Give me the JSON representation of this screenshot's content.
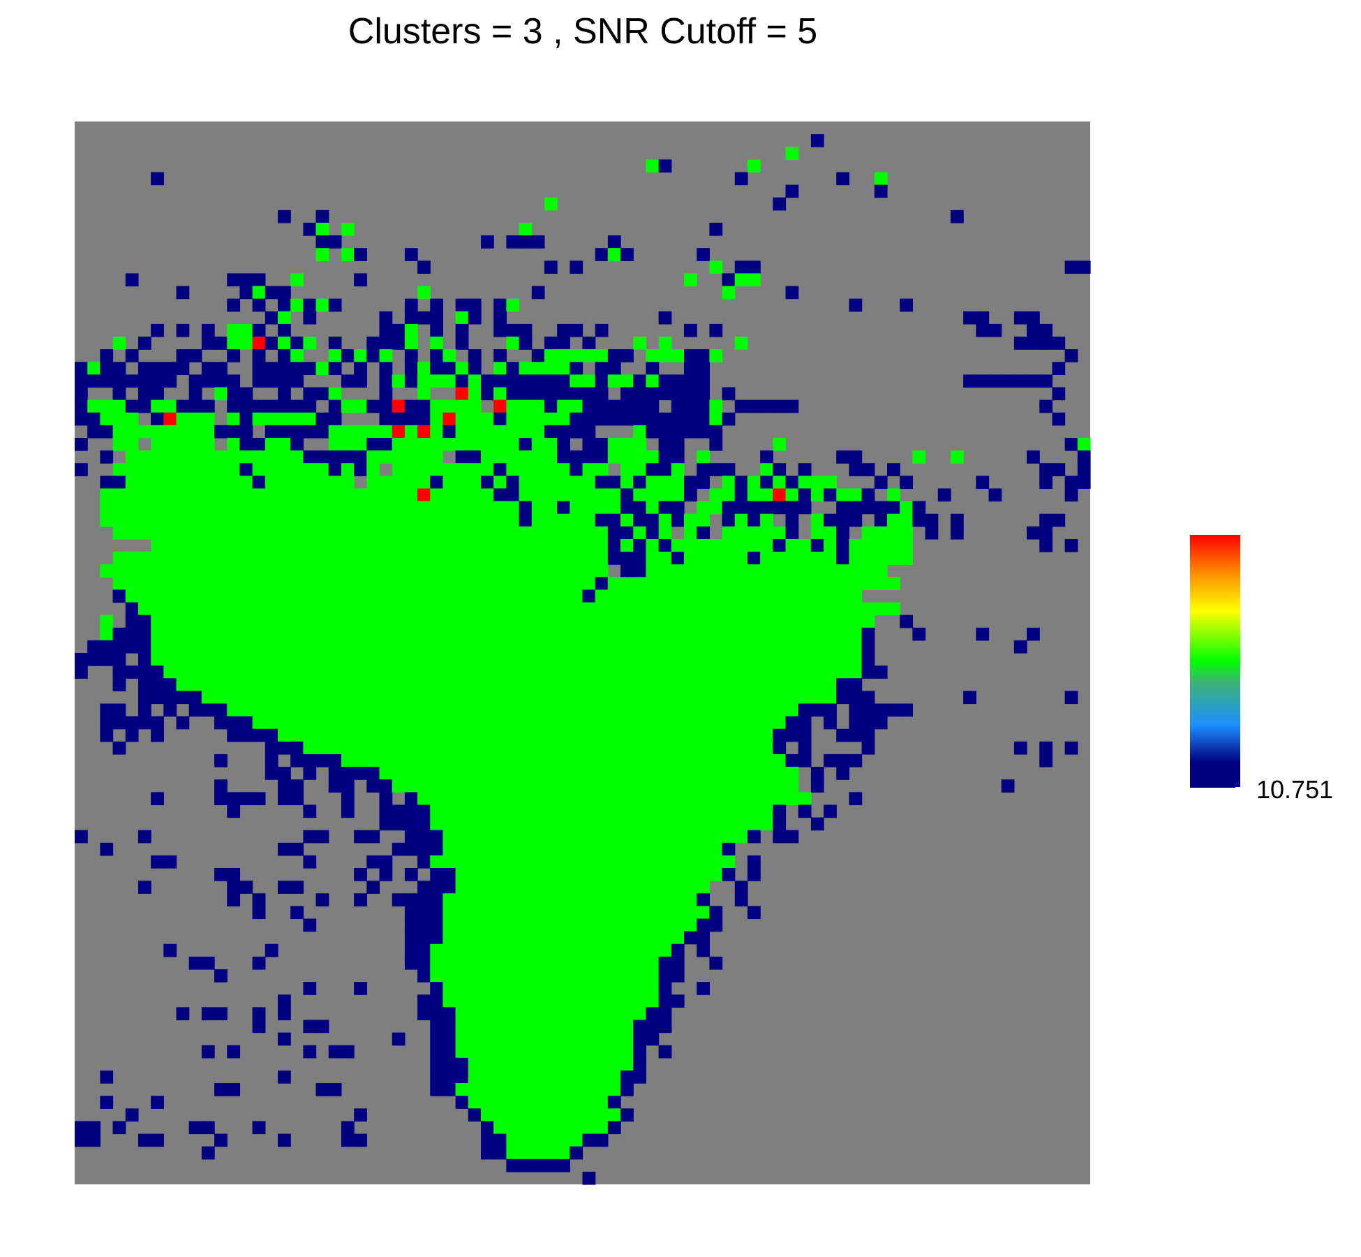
{
  "chart_data": {
    "type": "heatmap",
    "title": "Clusters =  3 , SNR Cutoff =  5",
    "clusters": 3,
    "snr_cutoff": 5,
    "grid": {
      "cols": 80,
      "rows": 84
    },
    "cluster_colors": {
      "0": "#7f7f7f",
      "1": "#000080",
      "2": "#00ff00",
      "3": "#ff0000"
    },
    "legend": {
      "type": "colorbar",
      "placement": "right",
      "tick_label": "10.751",
      "gradient": [
        "#ff0000",
        "#ff8c00",
        "#ffff00",
        "#00ff00",
        "#3cb371",
        "#1e90ff",
        "#000080"
      ]
    },
    "grid_values": [
      "................................................................................",
      "..........................................................1.....................",
      "........................................................2.......................",
      ".............................................21......2...........................",
      "......1.............................................1.......1..2...................",
      "........................................................1......1....................",
      ".....................................2.................1........................",
      "................1..1.................................................1..........",
      "..................12.2.............2..............1..............................",
      "...................11...........1.111.....1.......................................",
      "...................2.21...1..............121.....1.............................",
      "...........................1.........1.1..........2.11........................11",
      "....1.......111..2....1.........................2..122...........................",
      "........1....1211..........2........1..............2....1.......................",
      "............1.1.12121.....1.1.11.12..........................1...1.............",
      "...............12.1.....1.111.21.1............1.......................11..11....",
      "......1.1.1.221.1.......112.1.1..111..11.1......1.1....................11..11....",
      "...2.1....112231212.1..1112.2.1...21.11.1...2.2.....2.....................1111....",
      "..1.1...11..1.1.12..21212.1.12.1.1..12222211.222112...........................1.",
      "1211.1111.11..1111121.1.1.121121.2122221.11..1..11...........................1..",
      "11111111.1111.1111...11.12122212111111122122121111....................1111111...",
      "1..1.11..1.211..1.112...1..2..321211111111.1111111.1.........................1.",
      "12221122111.1111111.122113112222.3222122111111.1112.11111...................1...",
      "11222.13222.212222211...1111232221222221111111111121.........................1..",
      ".1122222222111.11111222223232122222221111...2111111...........................",
      "1..22.22222.211221..2221122222222221221.11222.11..1....2......................12",
      "..1.2222222222222211111222222.112222221111222211.2....1.....11....2..2.....1...1.",
      "1..222222222212222221212.22222222122222122.22112.111..21.1...11.1...........11.1",
      "..11222222222212222222.222221222121222222112122211.212121222...1.1.....1....1.11",
      "..22222222222222222222222223222221122222222122221.2212232121221.2...1...1.....1..",
      "..2222222222222222222222222222222221221222211211.221111111..1111121............",
      "..222222222222222222222222222222222122222112112122.1212.1.2111.12211.1......11",
      "...22222222222222222222222222222222222222211212.21.222221.221.2222.1.1.....11...",
      "......222222222222222222222222222222222222121212222222212212122222..........1.1",
      "...222222222222222222222222222222222222222111221222221222222122222..............",
      "..2222222222222222222222222222222222222222.112222222222222222222..............",
      "...22222222222222222222222222222222222222122222222222222222222222..............",
      "...12222222222222222222222222222222222221222222222222222222222..............",
      "....1222222222222222222222222222222222222222222222222222222222222..............",
      "..2.11222222222222222222222222222222222222222222222222222222222..1.............",
      "..2111222222222222222222222222222222222222222222222222222222221...1....1...1...",
      ".11111222222222222222222222222222222222222222222222222222222221...........1...",
      "1111.1222222222222222222222222222222222222222222222222222222221..............",
      "1..1111222222222222222222222222222222222222222222222222222222211.............",
      "...1.111222222222222222222222222222222222222222222222222222211..............",
      ".....1111122222222222222222222222222222222222222222222222222111.......1.......1",
      "..11.1.1.111222222222222222222222222222222222222222222222111.11111...........",
      "..11111.1..11122222222222222222222222222222222222222222211.1.111..............",
      "..1.1.1.....1111222222222222222222222222222222222222222111..111................",
      "...1...........11122222222222222222222222222222222222221.1....1...........1.1.1",
      "...........1...1.11112222222222222222222222222222222222211.111..............1..",
      "...............11.1.1111222222222222222222222222222222222.1.1....................",
      "...........1....11..11.1122222222222222222222222222222222.1..............1......",
      "......1....1111.11...1..1.12222222222222222222222222222222...1....................",
      "............1.....1..1..11112222222222222222222222222221.1.1....................",
      "........................11112222222222222222222222222221..1....................",
      "1....1............11..11..1112222222222222222222222221.11........................",
      "..1.............11.......111122222222222222222222221..............................",
      "......11..........1....11..1222222222222222222222222.1.........................",
      "...........11.........1.1.1.112222222222222222222221.1..........................",
      ".....1......11..11.....1...11122222222222222222222..1...........................",
      "............1.1....1..1..1111222222222222222222221..1...........................",
      "..............1..1........1112222222222222222222221..1..........................",
      "..................1.......1112222222222222222222211..............................",
      "..........................111222222222222222222211..............................",
      ".......1.......1..........1122222222222222222221.1................................",
      ".........11...1...........1122222222222222222211..1..............................",
      "...........1...............122222222222222222211.................................",
      "..................1...1.....1222222222222222221..1...............................",
      "................1..........112222222222222222211.................................",
      "........1.11..1.1..........11122222222222222211..................................",
      "..............1...11........1122222222222222111..................................",
      "................1........1..112222222222222211...................................",
      "..........1.1.....1.11......11222222222222221.1...................................",
      "............................11122222222222221....................................",
      "..1.............1...........11122222222222211.....................................",
      "...........11......11.......1122222222222221......................................",
      "..1...1.......................1222222222221......................................",
      "....1.................1........1222222222221.....................................",
      "11.1.....11...1......1..........12222222221......................................",
      "11...11....1....1....11.........1122222211.......................................",
      "..........1.....................11222221.........................................",
      "..................................11111..........................................",
      "........................................1........................................"
    ]
  }
}
